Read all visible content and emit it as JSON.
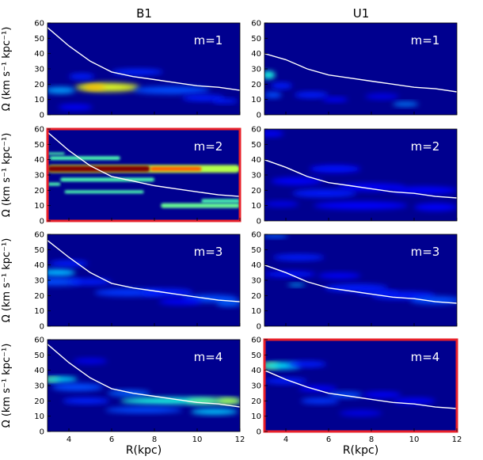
{
  "figure": {
    "column_titles": [
      "B1",
      "U1"
    ],
    "row_mode_labels": [
      "m=1",
      "m=2",
      "m=3",
      "m=4"
    ],
    "ylabel": "Ω (km s⁻¹ kpc⁻¹)",
    "xlabel": "R(kpc)",
    "highlighted_panels": [
      "B1 m=2",
      "U1 m=4"
    ],
    "colors": {
      "background": "#00008f",
      "curve": "#ffffff",
      "highlight": "#e8202a"
    }
  },
  "chart_data": [
    {
      "type": "heatmap",
      "title": "B1",
      "mode": "m=1",
      "xlim": [
        3,
        12
      ],
      "ylim": [
        0,
        60
      ],
      "xticks": [
        4,
        6,
        8,
        10,
        12
      ],
      "yticks": [
        0,
        10,
        20,
        30,
        40,
        50,
        60
      ],
      "xlabel": "",
      "ylabel": "Ω (km s⁻¹ kpc⁻¹)",
      "curve": {
        "x": [
          3,
          4,
          5,
          6,
          7,
          8,
          9,
          10,
          11,
          12
        ],
        "y": [
          57,
          45,
          35,
          28,
          25,
          23,
          21,
          19,
          18,
          16
        ]
      },
      "blobs": [
        {
          "x": 5.8,
          "y": 18,
          "rx": 1.5,
          "ry": 2.8,
          "v": 0.6
        },
        {
          "x": 5.2,
          "y": 18,
          "rx": 0.5,
          "ry": 1.6,
          "v": 0.7
        },
        {
          "x": 3.6,
          "y": 16,
          "rx": 0.7,
          "ry": 2.2,
          "v": 0.28
        },
        {
          "x": 8.8,
          "y": 16,
          "rx": 1.8,
          "ry": 2.5,
          "v": 0.2
        },
        {
          "x": 7.2,
          "y": 28,
          "rx": 1.2,
          "ry": 2,
          "v": 0.16
        },
        {
          "x": 4.6,
          "y": 25,
          "rx": 0.6,
          "ry": 2,
          "v": 0.15
        },
        {
          "x": 4.3,
          "y": 5,
          "rx": 0.8,
          "ry": 2,
          "v": 0.12
        },
        {
          "x": 10.3,
          "y": 11,
          "rx": 1,
          "ry": 2,
          "v": 0.15
        },
        {
          "x": 11.3,
          "y": 9,
          "rx": 0.6,
          "ry": 1.5,
          "v": 0.15
        }
      ]
    },
    {
      "type": "heatmap",
      "title": "U1",
      "mode": "m=1",
      "xlim": [
        3,
        12
      ],
      "ylim": [
        0,
        60
      ],
      "xticks": [
        4,
        6,
        8,
        10,
        12
      ],
      "yticks": [
        0,
        10,
        20,
        30,
        40,
        50,
        60
      ],
      "xlabel": "",
      "ylabel": "",
      "curve": {
        "x": [
          3,
          4,
          5,
          6,
          7,
          8,
          9,
          10,
          11,
          12
        ],
        "y": [
          40,
          36,
          30,
          26,
          24,
          22,
          20,
          18,
          17,
          15
        ]
      },
      "blobs": [
        {
          "x": 3.2,
          "y": 26,
          "rx": 0.3,
          "ry": 2.5,
          "v": 0.4
        },
        {
          "x": 3.4,
          "y": 13,
          "rx": 0.4,
          "ry": 2,
          "v": 0.2
        },
        {
          "x": 5.2,
          "y": 13,
          "rx": 0.8,
          "ry": 2,
          "v": 0.15
        },
        {
          "x": 6.3,
          "y": 10,
          "rx": 0.6,
          "ry": 1.5,
          "v": 0.13
        },
        {
          "x": 9.6,
          "y": 7,
          "rx": 0.6,
          "ry": 1.5,
          "v": 0.25
        },
        {
          "x": 3.8,
          "y": 19,
          "rx": 0.5,
          "ry": 2,
          "v": 0.15
        },
        {
          "x": 8.5,
          "y": 12,
          "rx": 0.8,
          "ry": 2,
          "v": 0.1
        }
      ]
    },
    {
      "type": "heatmap",
      "title": "B1",
      "mode": "m=2",
      "xlim": [
        3,
        12
      ],
      "ylim": [
        0,
        60
      ],
      "xticks": [
        4,
        6,
        8,
        10,
        12
      ],
      "yticks": [
        0,
        10,
        20,
        30,
        40,
        50,
        60
      ],
      "xlabel": "",
      "ylabel": "Ω (km s⁻¹ kpc⁻¹)",
      "curve": {
        "x": [
          3,
          4,
          5,
          6,
          7,
          8,
          9,
          10,
          11,
          12
        ],
        "y": [
          58,
          46,
          36,
          29,
          26,
          23,
          21,
          19,
          17,
          16
        ]
      },
      "bands": [
        {
          "x0": 3.0,
          "x1": 12.0,
          "y": 34,
          "h": 5,
          "v": 0.55
        },
        {
          "x0": 3.0,
          "x1": 7.8,
          "y": 34,
          "h": 4,
          "v": 1.0
        },
        {
          "x0": 7.8,
          "x1": 10.2,
          "y": 34,
          "h": 3,
          "v": 0.78
        },
        {
          "x0": 3.1,
          "x1": 6.4,
          "y": 41,
          "h": 2.5,
          "v": 0.45
        },
        {
          "x0": 3.6,
          "x1": 8.0,
          "y": 27,
          "h": 2.5,
          "v": 0.45
        },
        {
          "x0": 3.8,
          "x1": 7.5,
          "y": 19,
          "h": 2.0,
          "v": 0.45
        },
        {
          "x0": 3.0,
          "x1": 3.8,
          "y": 44,
          "h": 1.5,
          "v": 0.45
        },
        {
          "x0": 3.0,
          "x1": 3.6,
          "y": 24,
          "h": 2.0,
          "v": 0.45
        },
        {
          "x0": 8.3,
          "x1": 12.0,
          "y": 10,
          "h": 3.0,
          "v": 0.48
        },
        {
          "x0": 10.2,
          "x1": 12.0,
          "y": 13,
          "h": 2.5,
          "v": 0.45
        }
      ]
    },
    {
      "type": "heatmap",
      "title": "U1",
      "mode": "m=2",
      "xlim": [
        3,
        12
      ],
      "ylim": [
        0,
        60
      ],
      "xticks": [
        4,
        6,
        8,
        10,
        12
      ],
      "yticks": [
        0,
        10,
        20,
        30,
        40,
        50,
        60
      ],
      "xlabel": "",
      "ylabel": "",
      "curve": {
        "x": [
          3,
          4,
          5,
          6,
          7,
          8,
          9,
          10,
          11,
          12
        ],
        "y": [
          40,
          35,
          29,
          25,
          23,
          21,
          19,
          18,
          16,
          15
        ]
      },
      "blobs": [
        {
          "x": 3.3,
          "y": 57,
          "rx": 0.6,
          "ry": 2,
          "v": 0.12
        },
        {
          "x": 6.3,
          "y": 34,
          "rx": 1.2,
          "ry": 2.5,
          "v": 0.14
        },
        {
          "x": 4.5,
          "y": 26,
          "rx": 1.2,
          "ry": 2.5,
          "v": 0.12
        },
        {
          "x": 8.0,
          "y": 22,
          "rx": 1.6,
          "ry": 2.5,
          "v": 0.12
        },
        {
          "x": 5.8,
          "y": 18,
          "rx": 1.5,
          "ry": 2.5,
          "v": 0.15
        },
        {
          "x": 10.5,
          "y": 20,
          "rx": 1.5,
          "ry": 2.5,
          "v": 0.12
        },
        {
          "x": 7.5,
          "y": 10,
          "rx": 2.2,
          "ry": 2.5,
          "v": 0.13
        },
        {
          "x": 11.0,
          "y": 9,
          "rx": 1.0,
          "ry": 2.5,
          "v": 0.12
        },
        {
          "x": 3.8,
          "y": 11,
          "rx": 0.8,
          "ry": 2,
          "v": 0.1
        }
      ]
    },
    {
      "type": "heatmap",
      "title": "B1",
      "mode": "m=3",
      "xlim": [
        3,
        12
      ],
      "ylim": [
        0,
        60
      ],
      "xticks": [
        4,
        6,
        8,
        10,
        12
      ],
      "yticks": [
        0,
        10,
        20,
        30,
        40,
        50,
        60
      ],
      "xlabel": "",
      "ylabel": "Ω (km s⁻¹ kpc⁻¹)",
      "curve": {
        "x": [
          3,
          4,
          5,
          6,
          7,
          8,
          9,
          10,
          11,
          12
        ],
        "y": [
          56,
          45,
          35,
          28,
          25,
          23,
          21,
          19,
          17,
          16
        ]
      },
      "blobs": [
        {
          "x": 3.5,
          "y": 35,
          "rx": 0.8,
          "ry": 2.5,
          "v": 0.3
        },
        {
          "x": 3.4,
          "y": 29,
          "rx": 1.2,
          "ry": 2.5,
          "v": 0.2
        },
        {
          "x": 5.0,
          "y": 29,
          "rx": 1.0,
          "ry": 2,
          "v": 0.15
        },
        {
          "x": 4.0,
          "y": 41,
          "rx": 0.9,
          "ry": 2,
          "v": 0.15
        },
        {
          "x": 6.8,
          "y": 22,
          "rx": 1.6,
          "ry": 2.5,
          "v": 0.18
        },
        {
          "x": 8.6,
          "y": 22,
          "rx": 1.2,
          "ry": 2.5,
          "v": 0.15
        },
        {
          "x": 10.6,
          "y": 18,
          "rx": 1.3,
          "ry": 2.5,
          "v": 0.2
        },
        {
          "x": 11.5,
          "y": 15,
          "rx": 0.6,
          "ry": 2,
          "v": 0.22
        },
        {
          "x": 9.2,
          "y": 16,
          "rx": 1.0,
          "ry": 2,
          "v": 0.12
        }
      ]
    },
    {
      "type": "heatmap",
      "title": "U1",
      "mode": "m=3",
      "xlim": [
        3,
        12
      ],
      "ylim": [
        0,
        60
      ],
      "xticks": [
        4,
        6,
        8,
        10,
        12
      ],
      "yticks": [
        0,
        10,
        20,
        30,
        40,
        50,
        60
      ],
      "xlabel": "",
      "ylabel": "",
      "curve": {
        "x": [
          3,
          4,
          5,
          6,
          7,
          8,
          9,
          10,
          11,
          12
        ],
        "y": [
          40,
          35,
          29,
          25,
          23,
          21,
          19,
          18,
          16,
          15
        ]
      },
      "blobs": [
        {
          "x": 3.5,
          "y": 59,
          "rx": 0.6,
          "ry": 1.3,
          "v": 0.22
        },
        {
          "x": 4.6,
          "y": 45,
          "rx": 1.2,
          "ry": 2,
          "v": 0.15
        },
        {
          "x": 4.2,
          "y": 34,
          "rx": 1.2,
          "ry": 2,
          "v": 0.14
        },
        {
          "x": 4.5,
          "y": 27,
          "rx": 0.4,
          "ry": 1,
          "v": 0.3
        },
        {
          "x": 6.5,
          "y": 33,
          "rx": 1.0,
          "ry": 2,
          "v": 0.12
        },
        {
          "x": 7.3,
          "y": 25,
          "rx": 1.5,
          "ry": 2.5,
          "v": 0.15
        },
        {
          "x": 9.5,
          "y": 20,
          "rx": 1.5,
          "ry": 2.5,
          "v": 0.15
        },
        {
          "x": 11.0,
          "y": 17,
          "rx": 1.2,
          "ry": 2.5,
          "v": 0.2
        },
        {
          "x": 8.3,
          "y": 22,
          "rx": 1.0,
          "ry": 1.5,
          "v": 0.15
        }
      ]
    },
    {
      "type": "heatmap",
      "title": "B1",
      "mode": "m=4",
      "xlim": [
        3,
        12
      ],
      "ylim": [
        0,
        60
      ],
      "xticks": [
        4,
        6,
        8,
        10,
        12
      ],
      "yticks": [
        0,
        10,
        20,
        30,
        40,
        50,
        60
      ],
      "xlabel": "R(kpc)",
      "ylabel": "Ω (km s⁻¹ kpc⁻¹)",
      "curve": {
        "x": [
          3,
          4,
          5,
          6,
          7,
          8,
          9,
          10,
          11,
          12
        ],
        "y": [
          57,
          45,
          35,
          28,
          25,
          23,
          21,
          19,
          18,
          16
        ]
      },
      "blobs": [
        {
          "x": 3.2,
          "y": 34,
          "rx": 0.4,
          "ry": 1.2,
          "v": 0.6
        },
        {
          "x": 3.6,
          "y": 34,
          "rx": 0.8,
          "ry": 1.8,
          "v": 0.35
        },
        {
          "x": 4.4,
          "y": 29,
          "rx": 1.2,
          "ry": 2.5,
          "v": 0.2
        },
        {
          "x": 6.8,
          "y": 25,
          "rx": 1.0,
          "ry": 2,
          "v": 0.22
        },
        {
          "x": 8.6,
          "y": 20,
          "rx": 2.2,
          "ry": 2.2,
          "v": 0.4
        },
        {
          "x": 10.8,
          "y": 20,
          "rx": 1.3,
          "ry": 2,
          "v": 0.48
        },
        {
          "x": 11.5,
          "y": 20,
          "rx": 0.5,
          "ry": 1.5,
          "v": 0.55
        },
        {
          "x": 7.5,
          "y": 14,
          "rx": 1.8,
          "ry": 2,
          "v": 0.2
        },
        {
          "x": 10.8,
          "y": 13,
          "rx": 1.1,
          "ry": 2,
          "v": 0.32
        },
        {
          "x": 4.8,
          "y": 20,
          "rx": 1.1,
          "ry": 2,
          "v": 0.16
        },
        {
          "x": 5.0,
          "y": 46,
          "rx": 0.8,
          "ry": 2,
          "v": 0.1
        }
      ]
    },
    {
      "type": "heatmap",
      "title": "U1",
      "mode": "m=4",
      "xlim": [
        3,
        12
      ],
      "ylim": [
        0,
        60
      ],
      "xticks": [
        4,
        6,
        8,
        10,
        12
      ],
      "yticks": [
        0,
        10,
        20,
        30,
        40,
        50,
        60
      ],
      "xlabel": "R(kpc)",
      "ylabel": "",
      "curve": {
        "x": [
          3,
          4,
          5,
          6,
          7,
          8,
          9,
          10,
          11,
          12
        ],
        "y": [
          40,
          34,
          29,
          25,
          23,
          21,
          19,
          18,
          16,
          15
        ]
      },
      "blobs": [
        {
          "x": 3.3,
          "y": 43,
          "rx": 0.4,
          "ry": 1.6,
          "v": 0.6
        },
        {
          "x": 3.8,
          "y": 43,
          "rx": 0.9,
          "ry": 2.2,
          "v": 0.35
        },
        {
          "x": 5.0,
          "y": 44,
          "rx": 0.9,
          "ry": 2,
          "v": 0.15
        },
        {
          "x": 4.0,
          "y": 33,
          "rx": 1.0,
          "ry": 2,
          "v": 0.15
        },
        {
          "x": 5.5,
          "y": 28,
          "rx": 0.9,
          "ry": 2,
          "v": 0.12
        },
        {
          "x": 6.8,
          "y": 24,
          "rx": 0.8,
          "ry": 2,
          "v": 0.2
        },
        {
          "x": 5.6,
          "y": 20,
          "rx": 0.9,
          "ry": 2,
          "v": 0.18
        },
        {
          "x": 8.5,
          "y": 24,
          "rx": 0.9,
          "ry": 2,
          "v": 0.12
        },
        {
          "x": 10.0,
          "y": 20,
          "rx": 1.0,
          "ry": 2,
          "v": 0.12
        },
        {
          "x": 7.5,
          "y": 12,
          "rx": 1.0,
          "ry": 2,
          "v": 0.1
        }
      ]
    }
  ]
}
